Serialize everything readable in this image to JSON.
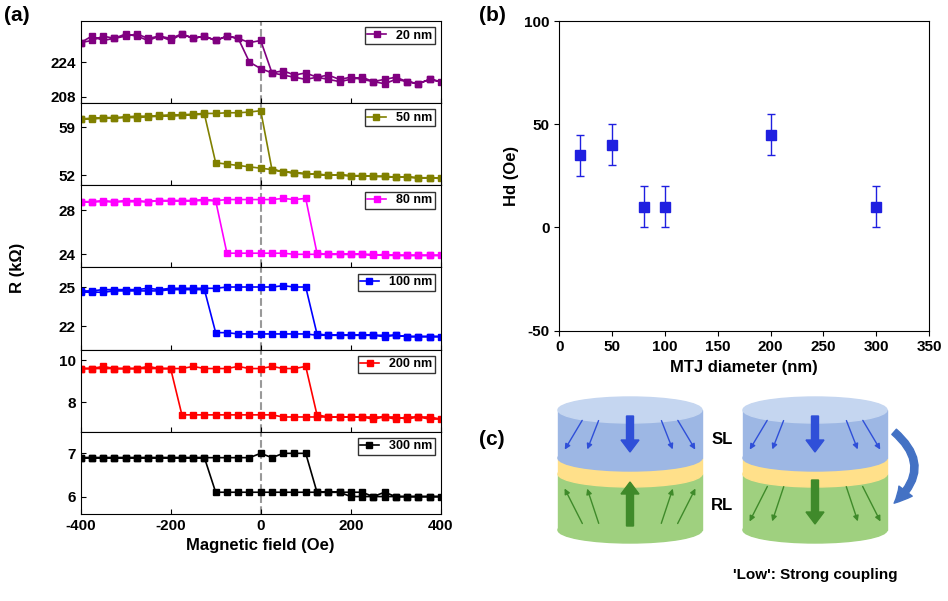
{
  "panel_labels": [
    "(a)",
    "(b)",
    "(c)"
  ],
  "panel_a": {
    "y_label": "R (kΩ)",
    "reference_x": 0
  },
  "chart_data": [
    {
      "type": "line",
      "xlim": [
        -400,
        400
      ],
      "xticks": [
        -400,
        -200,
        0,
        200,
        400
      ],
      "ylim": [
        205,
        243
      ],
      "yticks": [
        208,
        224
      ],
      "legend": "upper right",
      "tick_labels": "y",
      "series": [
        {
          "name": "20 nm",
          "color": "#800080",
          "marker": "square",
          "line_style": "solid",
          "x": [
            -400,
            -375,
            -350,
            -325,
            -300,
            -275,
            -250,
            -225,
            -200,
            -175,
            -150,
            -125,
            -100,
            -75,
            -50,
            -25,
            0,
            25,
            50,
            75,
            100,
            125,
            150,
            175,
            200,
            225,
            250,
            275,
            300,
            325,
            350,
            375,
            400,
            375,
            350,
            325,
            300,
            275,
            250,
            225,
            200,
            175,
            150,
            125,
            100,
            75,
            50,
            25,
            0,
            -25,
            -50,
            -75,
            -100,
            -125,
            -150,
            -175,
            -200,
            -225,
            -250,
            -275,
            -300,
            -325,
            -350,
            -375,
            -400
          ],
          "values": [
            233,
            234,
            236,
            235,
            237,
            236,
            234,
            236,
            235,
            237,
            235,
            236,
            234,
            236,
            235,
            233,
            234,
            219,
            218,
            217,
            216,
            217,
            216,
            215,
            216,
            217,
            215,
            214,
            216,
            215,
            214,
            216,
            215,
            216,
            214,
            215,
            217,
            216,
            215,
            216,
            217,
            216,
            218,
            217,
            219,
            218,
            220,
            219,
            221,
            224,
            235,
            236,
            234,
            236,
            235,
            237,
            234,
            236,
            235,
            237,
            236,
            235,
            234,
            236,
            233
          ]
        }
      ]
    },
    {
      "type": "line",
      "xlim": [
        -400,
        400
      ],
      "xticks": [
        -400,
        -200,
        0,
        200,
        400
      ],
      "ylim": [
        50.5,
        62.5
      ],
      "yticks": [
        52,
        59
      ],
      "legend": "upper right",
      "tick_labels": "y",
      "series": [
        {
          "name": "50 nm",
          "color": "#808000",
          "marker": "square",
          "line_style": "solid",
          "x": [
            -400,
            -375,
            -350,
            -325,
            -300,
            -275,
            -250,
            -225,
            -200,
            -175,
            -150,
            -125,
            -100,
            -75,
            -50,
            -25,
            0,
            25,
            50,
            75,
            100,
            125,
            150,
            175,
            200,
            225,
            250,
            275,
            300,
            325,
            350,
            375,
            400,
            375,
            350,
            325,
            300,
            275,
            250,
            225,
            200,
            175,
            150,
            125,
            100,
            75,
            50,
            25,
            0,
            -25,
            -50,
            -75,
            -100,
            -125,
            -150,
            -175,
            -200,
            -225,
            -250,
            -275,
            -300,
            -325,
            -350,
            -375,
            -400
          ],
          "values": [
            60.2,
            60.3,
            60.4,
            60.4,
            60.5,
            60.6,
            60.6,
            60.7,
            60.8,
            60.8,
            60.9,
            61.0,
            61.0,
            61.1,
            61.1,
            61.2,
            61.4,
            52.8,
            52.5,
            52.3,
            52.2,
            52.1,
            52.0,
            52.0,
            51.9,
            51.9,
            51.8,
            51.8,
            51.7,
            51.7,
            51.6,
            51.6,
            51.5,
            51.6,
            51.6,
            51.7,
            51.7,
            51.8,
            51.8,
            51.9,
            51.9,
            52.0,
            52.0,
            52.1,
            52.2,
            52.3,
            52.5,
            52.8,
            53.0,
            53.2,
            53.4,
            53.6,
            53.8,
            60.9,
            60.8,
            60.7,
            60.6,
            60.6,
            60.5,
            60.4,
            60.4,
            60.3,
            60.3,
            60.2,
            60.2
          ]
        }
      ]
    },
    {
      "type": "line",
      "xlim": [
        -400,
        400
      ],
      "xticks": [
        -400,
        -200,
        0,
        200,
        400
      ],
      "ylim": [
        22.8,
        30.3
      ],
      "yticks": [
        24,
        28
      ],
      "legend": "upper right",
      "tick_labels": "y",
      "series": [
        {
          "name": "80 nm",
          "color": "#ff00ff",
          "marker": "square",
          "line_style": "solid",
          "x": [
            -400,
            -375,
            -350,
            -325,
            -300,
            -275,
            -250,
            -225,
            -200,
            -175,
            -150,
            -125,
            -100,
            -75,
            -50,
            -25,
            0,
            25,
            50,
            75,
            100,
            125,
            150,
            175,
            200,
            225,
            250,
            275,
            300,
            325,
            350,
            375,
            400,
            375,
            350,
            325,
            300,
            275,
            250,
            225,
            200,
            175,
            150,
            125,
            100,
            75,
            50,
            25,
            0,
            -25,
            -50,
            -75,
            -100,
            -125,
            -150,
            -175,
            -200,
            -225,
            -250,
            -275,
            -300,
            -325,
            -350,
            -375,
            -400
          ],
          "values": [
            28.8,
            28.8,
            28.9,
            28.8,
            28.9,
            28.9,
            28.8,
            28.9,
            28.9,
            28.9,
            28.9,
            29.0,
            28.9,
            29.0,
            29.0,
            29.0,
            29.0,
            29.0,
            29.1,
            29.0,
            29.1,
            24.1,
            24.0,
            24.0,
            24.0,
            24.0,
            23.9,
            24.0,
            23.9,
            23.9,
            23.9,
            23.9,
            23.9,
            23.9,
            23.9,
            23.9,
            23.9,
            23.9,
            24.0,
            24.0,
            24.0,
            24.0,
            24.0,
            24.0,
            24.0,
            24.0,
            24.1,
            24.1,
            24.1,
            24.1,
            24.1,
            24.1,
            28.9,
            28.9,
            28.9,
            28.9,
            28.9,
            28.9,
            28.8,
            28.8,
            28.8,
            28.8,
            28.8,
            28.8,
            28.8
          ]
        }
      ]
    },
    {
      "type": "line",
      "xlim": [
        -400,
        400
      ],
      "xticks": [
        -400,
        -200,
        0,
        200,
        400
      ],
      "ylim": [
        20.2,
        26.5
      ],
      "yticks": [
        22,
        25
      ],
      "legend": "upper right",
      "tick_labels": "y",
      "series": [
        {
          "name": "100 nm",
          "color": "#0000ff",
          "marker": "square",
          "line_style": "solid",
          "x": [
            -400,
            -375,
            -350,
            -325,
            -300,
            -275,
            -250,
            -225,
            -200,
            -175,
            -150,
            -125,
            -100,
            -75,
            -50,
            -25,
            0,
            25,
            50,
            75,
            100,
            125,
            150,
            175,
            200,
            225,
            250,
            275,
            300,
            325,
            350,
            375,
            400,
            375,
            350,
            325,
            300,
            275,
            250,
            225,
            200,
            175,
            150,
            125,
            100,
            75,
            50,
            25,
            0,
            -25,
            -50,
            -75,
            -100,
            -125,
            -150,
            -175,
            -200,
            -225,
            -250,
            -275,
            -300,
            -325,
            -350,
            -375,
            -400
          ],
          "values": [
            24.7,
            24.7,
            24.8,
            24.8,
            24.8,
            24.8,
            24.9,
            24.8,
            24.9,
            24.9,
            24.9,
            24.9,
            24.9,
            25.0,
            25.0,
            25.0,
            25.0,
            25.0,
            25.1,
            25.0,
            25.0,
            21.4,
            21.3,
            21.3,
            21.3,
            21.3,
            21.3,
            21.2,
            21.3,
            21.2,
            21.2,
            21.2,
            21.2,
            21.2,
            21.2,
            21.2,
            21.3,
            21.3,
            21.3,
            21.3,
            21.3,
            21.3,
            21.3,
            21.3,
            21.4,
            21.4,
            21.4,
            21.4,
            21.4,
            21.4,
            21.4,
            21.5,
            21.5,
            24.8,
            24.8,
            24.8,
            24.8,
            24.7,
            24.7,
            24.7,
            24.7,
            24.7,
            24.6,
            24.6,
            24.6
          ]
        }
      ]
    },
    {
      "type": "line",
      "xlim": [
        -400,
        400
      ],
      "xticks": [
        -400,
        -200,
        0,
        200,
        400
      ],
      "ylim": [
        6.6,
        10.5
      ],
      "yticks": [
        8,
        10
      ],
      "legend": "upper right",
      "tick_labels": "y",
      "series": [
        {
          "name": "200 nm",
          "color": "#ff0000",
          "marker": "square",
          "line_style": "solid",
          "x": [
            -400,
            -375,
            -350,
            -325,
            -300,
            -275,
            -250,
            -225,
            -200,
            -175,
            -150,
            -125,
            -100,
            -75,
            -50,
            -25,
            0,
            25,
            50,
            75,
            100,
            125,
            150,
            175,
            200,
            225,
            250,
            275,
            300,
            325,
            350,
            375,
            400,
            375,
            350,
            325,
            300,
            275,
            250,
            225,
            200,
            175,
            150,
            125,
            100,
            75,
            50,
            25,
            0,
            -25,
            -50,
            -75,
            -100,
            -125,
            -150,
            -175,
            -200,
            -225,
            -250,
            -275,
            -300,
            -325,
            -350,
            -375,
            -400
          ],
          "values": [
            9.6,
            9.6,
            9.7,
            9.6,
            9.6,
            9.6,
            9.7,
            9.6,
            9.6,
            9.6,
            9.7,
            9.6,
            9.6,
            9.6,
            9.7,
            9.6,
            9.6,
            9.7,
            9.6,
            9.6,
            9.7,
            7.4,
            7.3,
            7.3,
            7.3,
            7.3,
            7.2,
            7.3,
            7.3,
            7.2,
            7.3,
            7.3,
            7.2,
            7.2,
            7.3,
            7.3,
            7.2,
            7.3,
            7.3,
            7.3,
            7.3,
            7.3,
            7.3,
            7.3,
            7.3,
            7.3,
            7.3,
            7.4,
            7.4,
            7.4,
            7.4,
            7.4,
            7.4,
            7.4,
            7.4,
            7.4,
            9.6,
            9.6,
            9.6,
            9.6,
            9.6,
            9.6,
            9.6,
            9.6,
            9.6
          ]
        }
      ]
    },
    {
      "type": "line",
      "xlim": [
        -400,
        400
      ],
      "xticks": [
        -400,
        -200,
        0,
        200,
        400
      ],
      "ylim": [
        5.6,
        7.5
      ],
      "yticks": [
        6,
        7
      ],
      "legend": "upper right",
      "x_label": "Magnetic field (Oe)",
      "series": [
        {
          "name": "300 nm",
          "color": "#000000",
          "marker": "square",
          "line_style": "solid",
          "x": [
            -400,
            -375,
            -350,
            -325,
            -300,
            -275,
            -250,
            -225,
            -200,
            -175,
            -150,
            -125,
            -100,
            -75,
            -50,
            -25,
            0,
            25,
            50,
            75,
            100,
            125,
            150,
            175,
            200,
            225,
            250,
            275,
            300,
            325,
            350,
            375,
            400,
            375,
            350,
            325,
            300,
            275,
            250,
            225,
            200,
            175,
            150,
            125,
            100,
            75,
            50,
            25,
            0,
            -25,
            -50,
            -75,
            -100,
            -125,
            -150,
            -175,
            -200,
            -225,
            -250,
            -275,
            -300,
            -325,
            -350,
            -375,
            -400
          ],
          "values": [
            6.9,
            6.9,
            6.9,
            6.9,
            6.9,
            6.9,
            6.9,
            6.9,
            6.9,
            6.9,
            6.9,
            6.9,
            6.9,
            6.9,
            6.9,
            6.9,
            7.0,
            6.9,
            7.0,
            7.0,
            7.0,
            6.1,
            6.1,
            6.1,
            6.1,
            6.1,
            6.0,
            6.1,
            6.0,
            6.0,
            6.0,
            6.0,
            6.0,
            6.0,
            6.0,
            6.0,
            6.0,
            6.0,
            6.0,
            6.0,
            6.0,
            6.1,
            6.1,
            6.1,
            6.1,
            6.1,
            6.1,
            6.1,
            6.1,
            6.1,
            6.1,
            6.1,
            6.1,
            6.9,
            6.9,
            6.9,
            6.9,
            6.9,
            6.9,
            6.9,
            6.9,
            6.9,
            6.9,
            6.9,
            6.9
          ]
        }
      ]
    },
    {
      "type": "scatter",
      "x_label": "MTJ diameter (nm)",
      "y_label": "Hd (Oe)",
      "xlim": [
        0,
        350
      ],
      "xticks": [
        0,
        50,
        100,
        150,
        200,
        250,
        300,
        350
      ],
      "ylim": [
        -50,
        100
      ],
      "yticks": [
        -50,
        0,
        50,
        100
      ],
      "series": [
        {
          "color": "#1f1fe0",
          "marker": "square",
          "x": [
            20,
            50,
            80,
            100,
            200,
            300
          ],
          "values": [
            35,
            40,
            10,
            10,
            45,
            10
          ],
          "errors": [
            10,
            10,
            10,
            10,
            10,
            10
          ]
        }
      ]
    }
  ],
  "diagram": {
    "layer_labels": [
      "SL",
      "RL"
    ],
    "caption": "'Low': Strong coupling"
  }
}
